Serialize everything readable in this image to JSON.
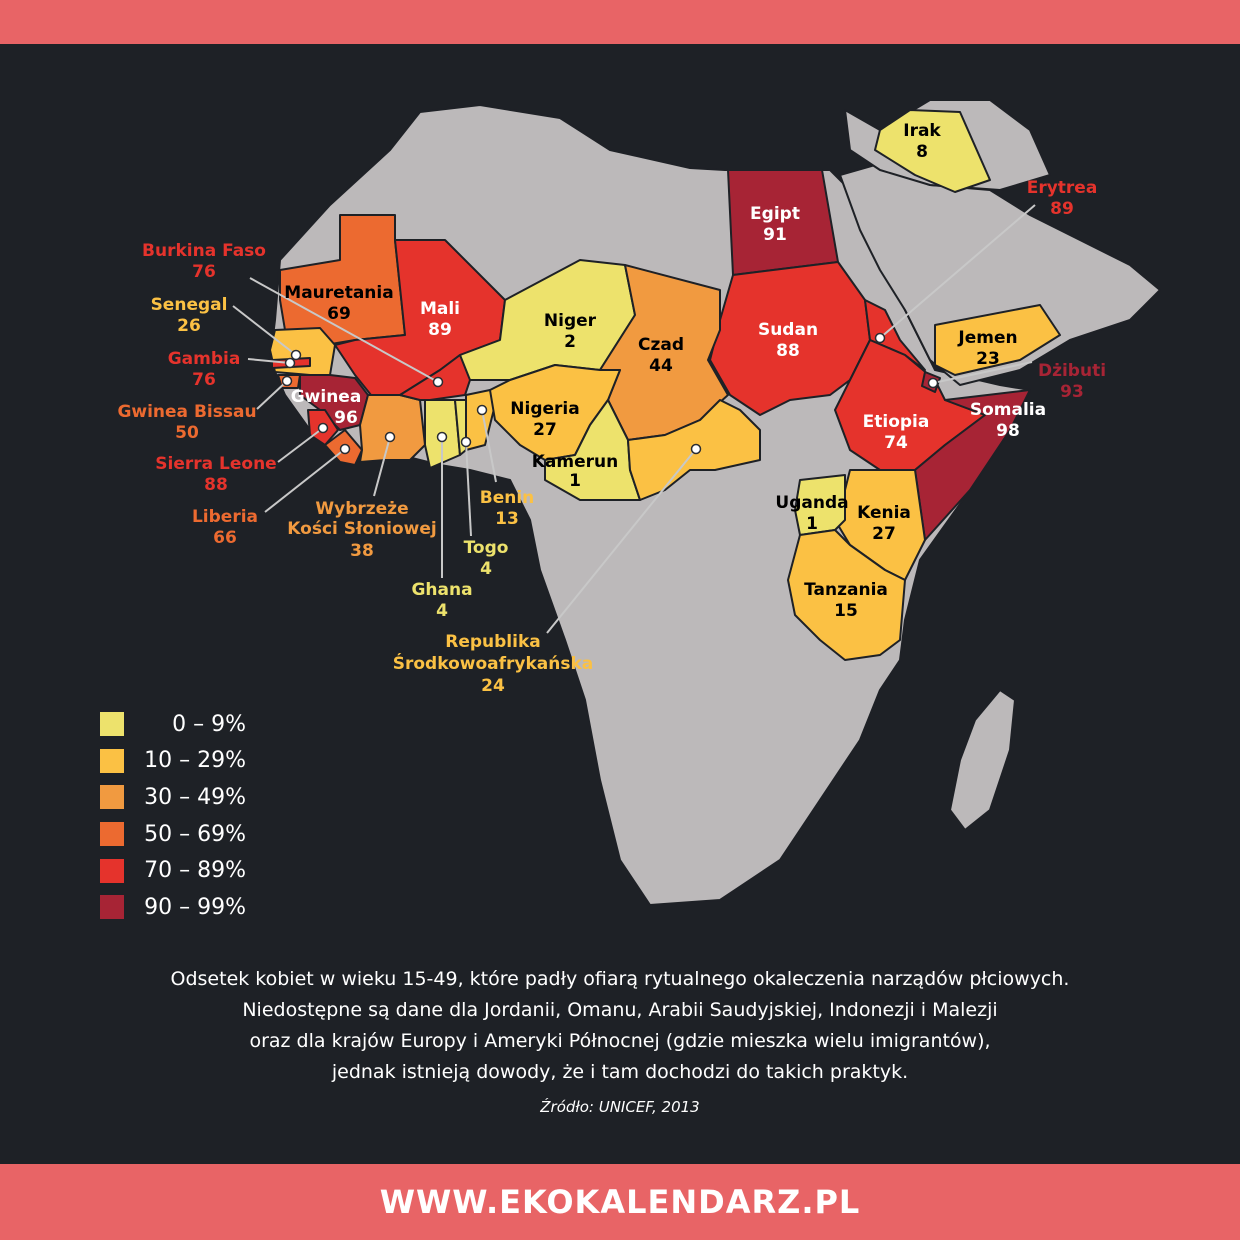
{
  "colors": {
    "bar": "#e86466",
    "background": "#1e2126",
    "land": "#bcb9ba",
    "border": "#1e2126",
    "b0": "#ede26c",
    "b1": "#fbc144",
    "b2": "#f19a40",
    "b3": "#ec6a30",
    "b4": "#e5332c",
    "b5": "#a72435"
  },
  "legend": [
    {
      "label": "0 – 9%",
      "color": "#ede26c"
    },
    {
      "label": "10 – 29%",
      "color": "#fbc144"
    },
    {
      "label": "30 – 49%",
      "color": "#f19a40"
    },
    {
      "label": "50 – 69%",
      "color": "#ec6a30"
    },
    {
      "label": "70 – 89%",
      "color": "#e5332c"
    },
    {
      "label": "90 – 99%",
      "color": "#a72435"
    }
  ],
  "countries": [
    {
      "id": "irak",
      "name": "Irak",
      "value": "8"
    },
    {
      "id": "egipt",
      "name": "Egipt",
      "value": "91"
    },
    {
      "id": "erytrea",
      "name": "Erytrea",
      "value": "89"
    },
    {
      "id": "burkina",
      "name": "Burkina Faso",
      "value": "76"
    },
    {
      "id": "mauretania",
      "name": "Mauretania",
      "value": "69"
    },
    {
      "id": "mali",
      "name": "Mali",
      "value": "89"
    },
    {
      "id": "niger",
      "name": "Niger",
      "value": "2"
    },
    {
      "id": "czad",
      "name": "Czad",
      "value": "44"
    },
    {
      "id": "sudan",
      "name": "Sudan",
      "value": "88"
    },
    {
      "id": "jemen",
      "name": "Jemen",
      "value": "23"
    },
    {
      "id": "senegal",
      "name": "Senegal",
      "value": "26"
    },
    {
      "id": "gambia",
      "name": "Gambia",
      "value": "76"
    },
    {
      "id": "dzibuti",
      "name": "Dżibuti",
      "value": "93"
    },
    {
      "id": "gwineabissau",
      "name": "Gwinea Bissau",
      "value": "50"
    },
    {
      "id": "gwinea",
      "name": "Gwinea",
      "value": "96"
    },
    {
      "id": "nigeria",
      "name": "Nigeria",
      "value": "27"
    },
    {
      "id": "etiopia",
      "name": "Etiopia",
      "value": "74"
    },
    {
      "id": "somalia",
      "name": "Somalia",
      "value": "98"
    },
    {
      "id": "sierra",
      "name": "Sierra Leone",
      "value": "88"
    },
    {
      "id": "kamerun",
      "name": "Kamerun",
      "value": "1"
    },
    {
      "id": "benin",
      "name": "Benin",
      "value": "13"
    },
    {
      "id": "uganda",
      "name": "Uganda",
      "value": "1"
    },
    {
      "id": "kenia",
      "name": "Kenia",
      "value": "27"
    },
    {
      "id": "liberia",
      "name": "Liberia",
      "value": "66"
    },
    {
      "id": "wkos",
      "name_lines": [
        "Wybrzeże",
        "Kości Słoniowej"
      ],
      "value": "38"
    },
    {
      "id": "togo",
      "name": "Togo",
      "value": "4"
    },
    {
      "id": "ghana",
      "name": "Ghana",
      "value": "4"
    },
    {
      "id": "tanzania",
      "name": "Tanzania",
      "value": "15"
    },
    {
      "id": "rca",
      "name_lines": [
        "Republika",
        "Środkowoafrykańska"
      ],
      "value": "24"
    }
  ],
  "caption": {
    "lines": [
      "Odsetek kobiet w wieku 15-49, które padły ofiarą rytualnego okaleczenia narządów płciowych.",
      "Niedostępne są dane dla Jordanii, Omanu, Arabii Saudyjskiej, Indonezji i Malezji",
      "oraz dla krajów Europy i Ameryki Północnej (gdzie mieszka wielu imigrantów),",
      "jednak istnieją dowody, że i tam dochodzi do takich praktyk."
    ],
    "source": "Źródło: UNICEF, 2013"
  },
  "footer": {
    "url": "WWW.EKOKALENDARZ.PL"
  }
}
